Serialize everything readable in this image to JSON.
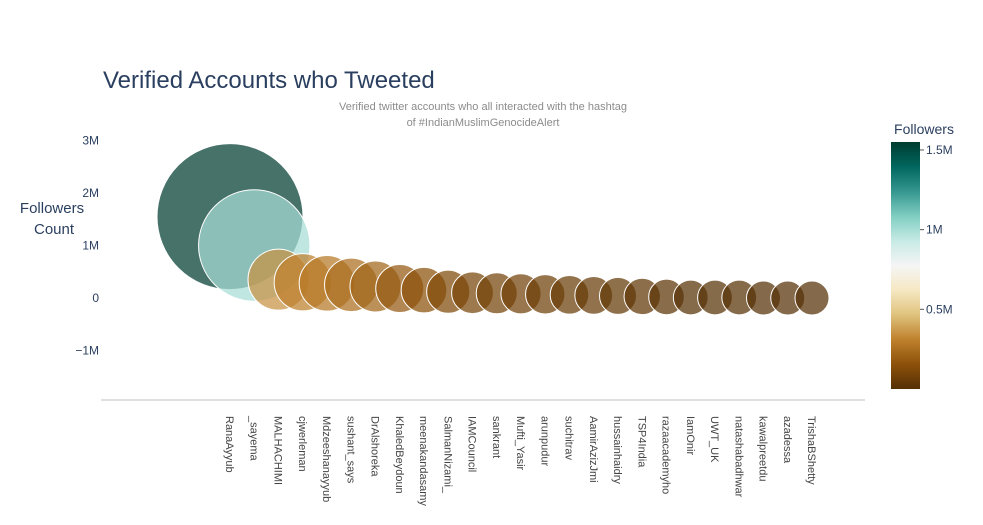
{
  "chart_data": {
    "type": "scatter",
    "title": "Verified Accounts who Tweeted",
    "subtitle_lines": [
      "Verified twitter accounts who all interacted with the hashtag",
      "of #IndianMuslimGenocideAlert"
    ],
    "ylabel_lines": [
      "Followers",
      "Count"
    ],
    "xlabel": "",
    "ylim": [
      -1.9,
      3.0
    ],
    "yticks": [
      3,
      2,
      1,
      0,
      -1
    ],
    "ytick_labels": [
      "3M",
      "2M",
      "1M",
      "0",
      "−1M"
    ],
    "x": [
      "RanaAyyub",
      "_sayema",
      "MALHACHIMI",
      "cjwerleman",
      "Mdzeeshanayyub",
      "sushant_says",
      "DrAlshoreka",
      "KhaledBeydoun",
      "meenakandasamy",
      "SalmanNizami_",
      "IAMCouncil",
      "sankrant",
      "Mufti_Yasir",
      "arunpudur",
      "suchitrav",
      "AamirAzizJmi",
      "hussainhaidry",
      "TSP4India",
      "razaacademyho",
      "IamOnir",
      "UWT_UK",
      "natashabadhwar",
      "kawalpreetdu",
      "azadessa",
      "TrishaBShetty"
    ],
    "y": [
      1.55,
      1.0,
      0.35,
      0.3,
      0.28,
      0.25,
      0.22,
      0.18,
      0.15,
      0.12,
      0.1,
      0.09,
      0.08,
      0.07,
      0.06,
      0.05,
      0.04,
      0.03,
      0.02,
      0.01,
      0.01,
      0.01,
      0.0,
      0.0,
      0.0
    ],
    "followers": [
      1.55,
      1.0,
      0.35,
      0.3,
      0.28,
      0.25,
      0.22,
      0.18,
      0.15,
      0.12,
      0.1,
      0.09,
      0.08,
      0.07,
      0.06,
      0.05,
      0.04,
      0.03,
      0.02,
      0.01,
      0.01,
      0.01,
      0.0,
      0.0,
      0.0
    ],
    "marker_size_note": "bubble size proportional to value",
    "colorbar": {
      "title": "Followers",
      "range": [
        0,
        1.55
      ],
      "tick_values": [
        1.5,
        1.0,
        0.5
      ],
      "tick_labels": [
        "1.5M",
        "1M",
        "0.5M"
      ],
      "colorscale": [
        "#543005",
        "#8c510a",
        "#bf812d",
        "#dfc27d",
        "#f6e8c3",
        "#f5f5f5",
        "#c7eae5",
        "#80cdc1",
        "#35978f",
        "#01665e",
        "#003c30"
      ]
    },
    "grid": false,
    "legend": "colorbar right"
  }
}
